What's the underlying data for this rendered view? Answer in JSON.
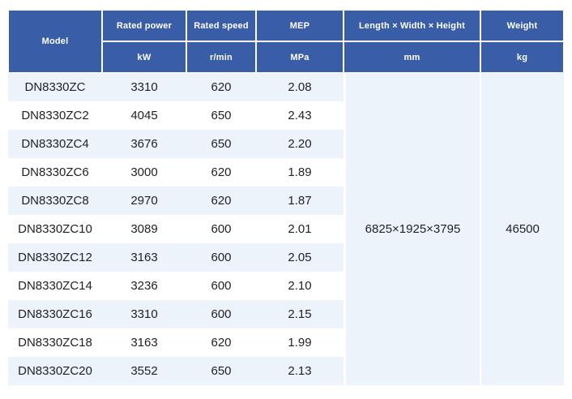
{
  "colors": {
    "header_bg": "#3a5da8",
    "stripe_bg": "#ecf3fb",
    "header_text": "#ffffff",
    "data_text": "#1f2023"
  },
  "table": {
    "header": {
      "model": "Model",
      "columns": [
        {
          "label": "Rated power",
          "unit": "kW"
        },
        {
          "label": "Rated speed",
          "unit": "r/min"
        },
        {
          "label": "MEP",
          "unit": "MPa"
        },
        {
          "label": "Length × Width × Height",
          "unit": "mm"
        },
        {
          "label": "Weight",
          "unit": "kg"
        }
      ]
    },
    "rows": [
      {
        "model": "DN8330ZC",
        "rated_power_kw": "3310",
        "rated_speed_rpm": "620",
        "mep_mpa": "2.08"
      },
      {
        "model": "DN8330ZC2",
        "rated_power_kw": "4045",
        "rated_speed_rpm": "650",
        "mep_mpa": "2.43"
      },
      {
        "model": "DN8330ZC4",
        "rated_power_kw": "3676",
        "rated_speed_rpm": "650",
        "mep_mpa": "2.20"
      },
      {
        "model": "DN8330ZC6",
        "rated_power_kw": "3000",
        "rated_speed_rpm": "620",
        "mep_mpa": "1.89"
      },
      {
        "model": "DN8330ZC8",
        "rated_power_kw": "2970",
        "rated_speed_rpm": "620",
        "mep_mpa": "1.87"
      },
      {
        "model": "DN8330ZC10",
        "rated_power_kw": "3089",
        "rated_speed_rpm": "600",
        "mep_mpa": "2.01"
      },
      {
        "model": "DN8330ZC12",
        "rated_power_kw": "3163",
        "rated_speed_rpm": "600",
        "mep_mpa": "2.05"
      },
      {
        "model": "DN8330ZC14",
        "rated_power_kw": "3236",
        "rated_speed_rpm": "600",
        "mep_mpa": "2.10"
      },
      {
        "model": "DN8330ZC16",
        "rated_power_kw": "3310",
        "rated_speed_rpm": "600",
        "mep_mpa": "2.15"
      },
      {
        "model": "DN8330ZC18",
        "rated_power_kw": "3163",
        "rated_speed_rpm": "620",
        "mep_mpa": "1.99"
      },
      {
        "model": "DN8330ZC20",
        "rated_power_kw": "3552",
        "rated_speed_rpm": "650",
        "mep_mpa": "2.13"
      }
    ],
    "merged": {
      "dimensions_mm": "6825×1925×3795",
      "weight_kg": "46500"
    }
  }
}
